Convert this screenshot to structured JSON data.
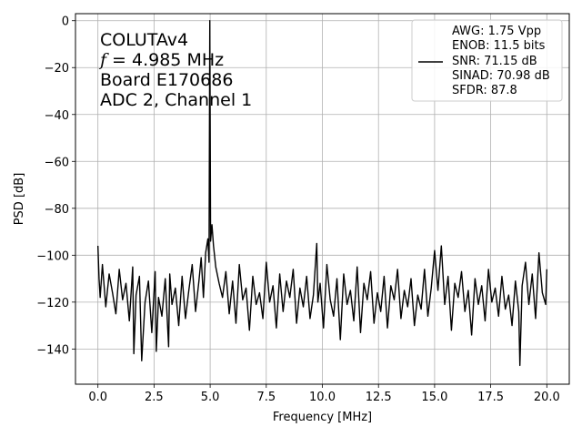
{
  "chart_data": {
    "type": "line",
    "xlabel": "Frequency [MHz]",
    "ylabel": "PSD [dB]",
    "xlim": [
      -1.0,
      21.0
    ],
    "ylim": [
      -155,
      3
    ],
    "xticks": [
      0.0,
      2.5,
      5.0,
      7.5,
      10.0,
      12.5,
      15.0,
      17.5,
      20.0
    ],
    "xtick_labels": [
      "0.0",
      "2.5",
      "5.0",
      "7.5",
      "10.0",
      "12.5",
      "15.0",
      "17.5",
      "20.0"
    ],
    "yticks": [
      0,
      -20,
      -40,
      -60,
      -80,
      -100,
      -120,
      -140
    ],
    "ytick_labels": [
      "0",
      "−20",
      "−40",
      "−60",
      "−80",
      "−100",
      "−120",
      "−140"
    ],
    "grid": true,
    "legend_position": "top-right",
    "annotation_lines": [
      "COLUTAv4",
      "= 4.985 MHz",
      "Board E170686",
      "ADC 2, Channel 1"
    ],
    "annotation_f_symbol": "f",
    "legend_lines": [
      "AWG: 1.75 Vpp",
      "ENOB: 11.5 bits",
      "SNR: 71.15 dB",
      "SINAD: 70.98 dB",
      "SFDR: 87.8"
    ],
    "series": [
      {
        "color": "#000000",
        "x": [
          0.0,
          0.05,
          0.1,
          0.2,
          0.35,
          0.5,
          0.65,
          0.8,
          0.95,
          1.1,
          1.25,
          1.4,
          1.55,
          1.6,
          1.7,
          1.85,
          1.95,
          2.1,
          2.25,
          2.4,
          2.55,
          2.6,
          2.7,
          2.85,
          3.0,
          3.15,
          3.2,
          3.3,
          3.45,
          3.6,
          3.75,
          3.9,
          4.05,
          4.2,
          4.35,
          4.5,
          4.6,
          4.7,
          4.8,
          4.9,
          4.95,
          4.985,
          5.02,
          5.08,
          5.15,
          5.25,
          5.4,
          5.55,
          5.7,
          5.85,
          6.0,
          6.15,
          6.3,
          6.45,
          6.6,
          6.75,
          6.9,
          7.05,
          7.2,
          7.35,
          7.5,
          7.65,
          7.8,
          7.95,
          8.1,
          8.25,
          8.4,
          8.55,
          8.7,
          8.85,
          9.0,
          9.15,
          9.3,
          9.45,
          9.6,
          9.75,
          9.8,
          9.9,
          10.05,
          10.2,
          10.35,
          10.5,
          10.65,
          10.8,
          10.95,
          11.1,
          11.25,
          11.4,
          11.55,
          11.7,
          11.85,
          12.0,
          12.15,
          12.3,
          12.45,
          12.6,
          12.75,
          12.9,
          13.05,
          13.2,
          13.35,
          13.5,
          13.65,
          13.8,
          13.95,
          14.1,
          14.25,
          14.4,
          14.55,
          14.7,
          14.85,
          15.0,
          15.15,
          15.3,
          15.45,
          15.6,
          15.75,
          15.9,
          16.05,
          16.2,
          16.35,
          16.5,
          16.65,
          16.8,
          16.95,
          17.1,
          17.25,
          17.4,
          17.55,
          17.7,
          17.85,
          18.0,
          18.15,
          18.3,
          18.45,
          18.6,
          18.75,
          18.8,
          18.9,
          19.05,
          19.2,
          19.35,
          19.5,
          19.65,
          19.8,
          19.95,
          20.0
        ],
        "y": [
          -96,
          -110,
          -118,
          -104,
          -122,
          -108,
          -116,
          -125,
          -106,
          -119,
          -112,
          -128,
          -105,
          -142,
          -117,
          -109,
          -145,
          -120,
          -111,
          -133,
          -107,
          -141,
          -118,
          -126,
          -110,
          -139,
          -108,
          -121,
          -114,
          -130,
          -109,
          -127,
          -115,
          -104,
          -124,
          -111,
          -101,
          -118,
          -99,
          -93,
          -103,
          0,
          -94,
          -87,
          -96,
          -105,
          -112,
          -118,
          -107,
          -125,
          -111,
          -129,
          -104,
          -119,
          -114,
          -132,
          -109,
          -121,
          -116,
          -127,
          -103,
          -120,
          -113,
          -131,
          -108,
          -124,
          -111,
          -118,
          -106,
          -129,
          -114,
          -122,
          -109,
          -127,
          -117,
          -95,
          -120,
          -112,
          -131,
          -104,
          -119,
          -126,
          -110,
          -136,
          -108,
          -121,
          -115,
          -128,
          -105,
          -133,
          -112,
          -119,
          -107,
          -129,
          -116,
          -124,
          -109,
          -131,
          -113,
          -119,
          -106,
          -127,
          -115,
          -122,
          -110,
          -130,
          -117,
          -123,
          -106,
          -126,
          -114,
          -98,
          -115,
          -96,
          -121,
          -109,
          -132,
          -112,
          -118,
          -107,
          -124,
          -115,
          -134,
          -110,
          -121,
          -113,
          -128,
          -106,
          -120,
          -114,
          -126,
          -109,
          -123,
          -117,
          -130,
          -111,
          -124,
          -147,
          -113,
          -103,
          -121,
          -108,
          -127,
          -99,
          -116,
          -121,
          -106
        ]
      }
    ]
  }
}
